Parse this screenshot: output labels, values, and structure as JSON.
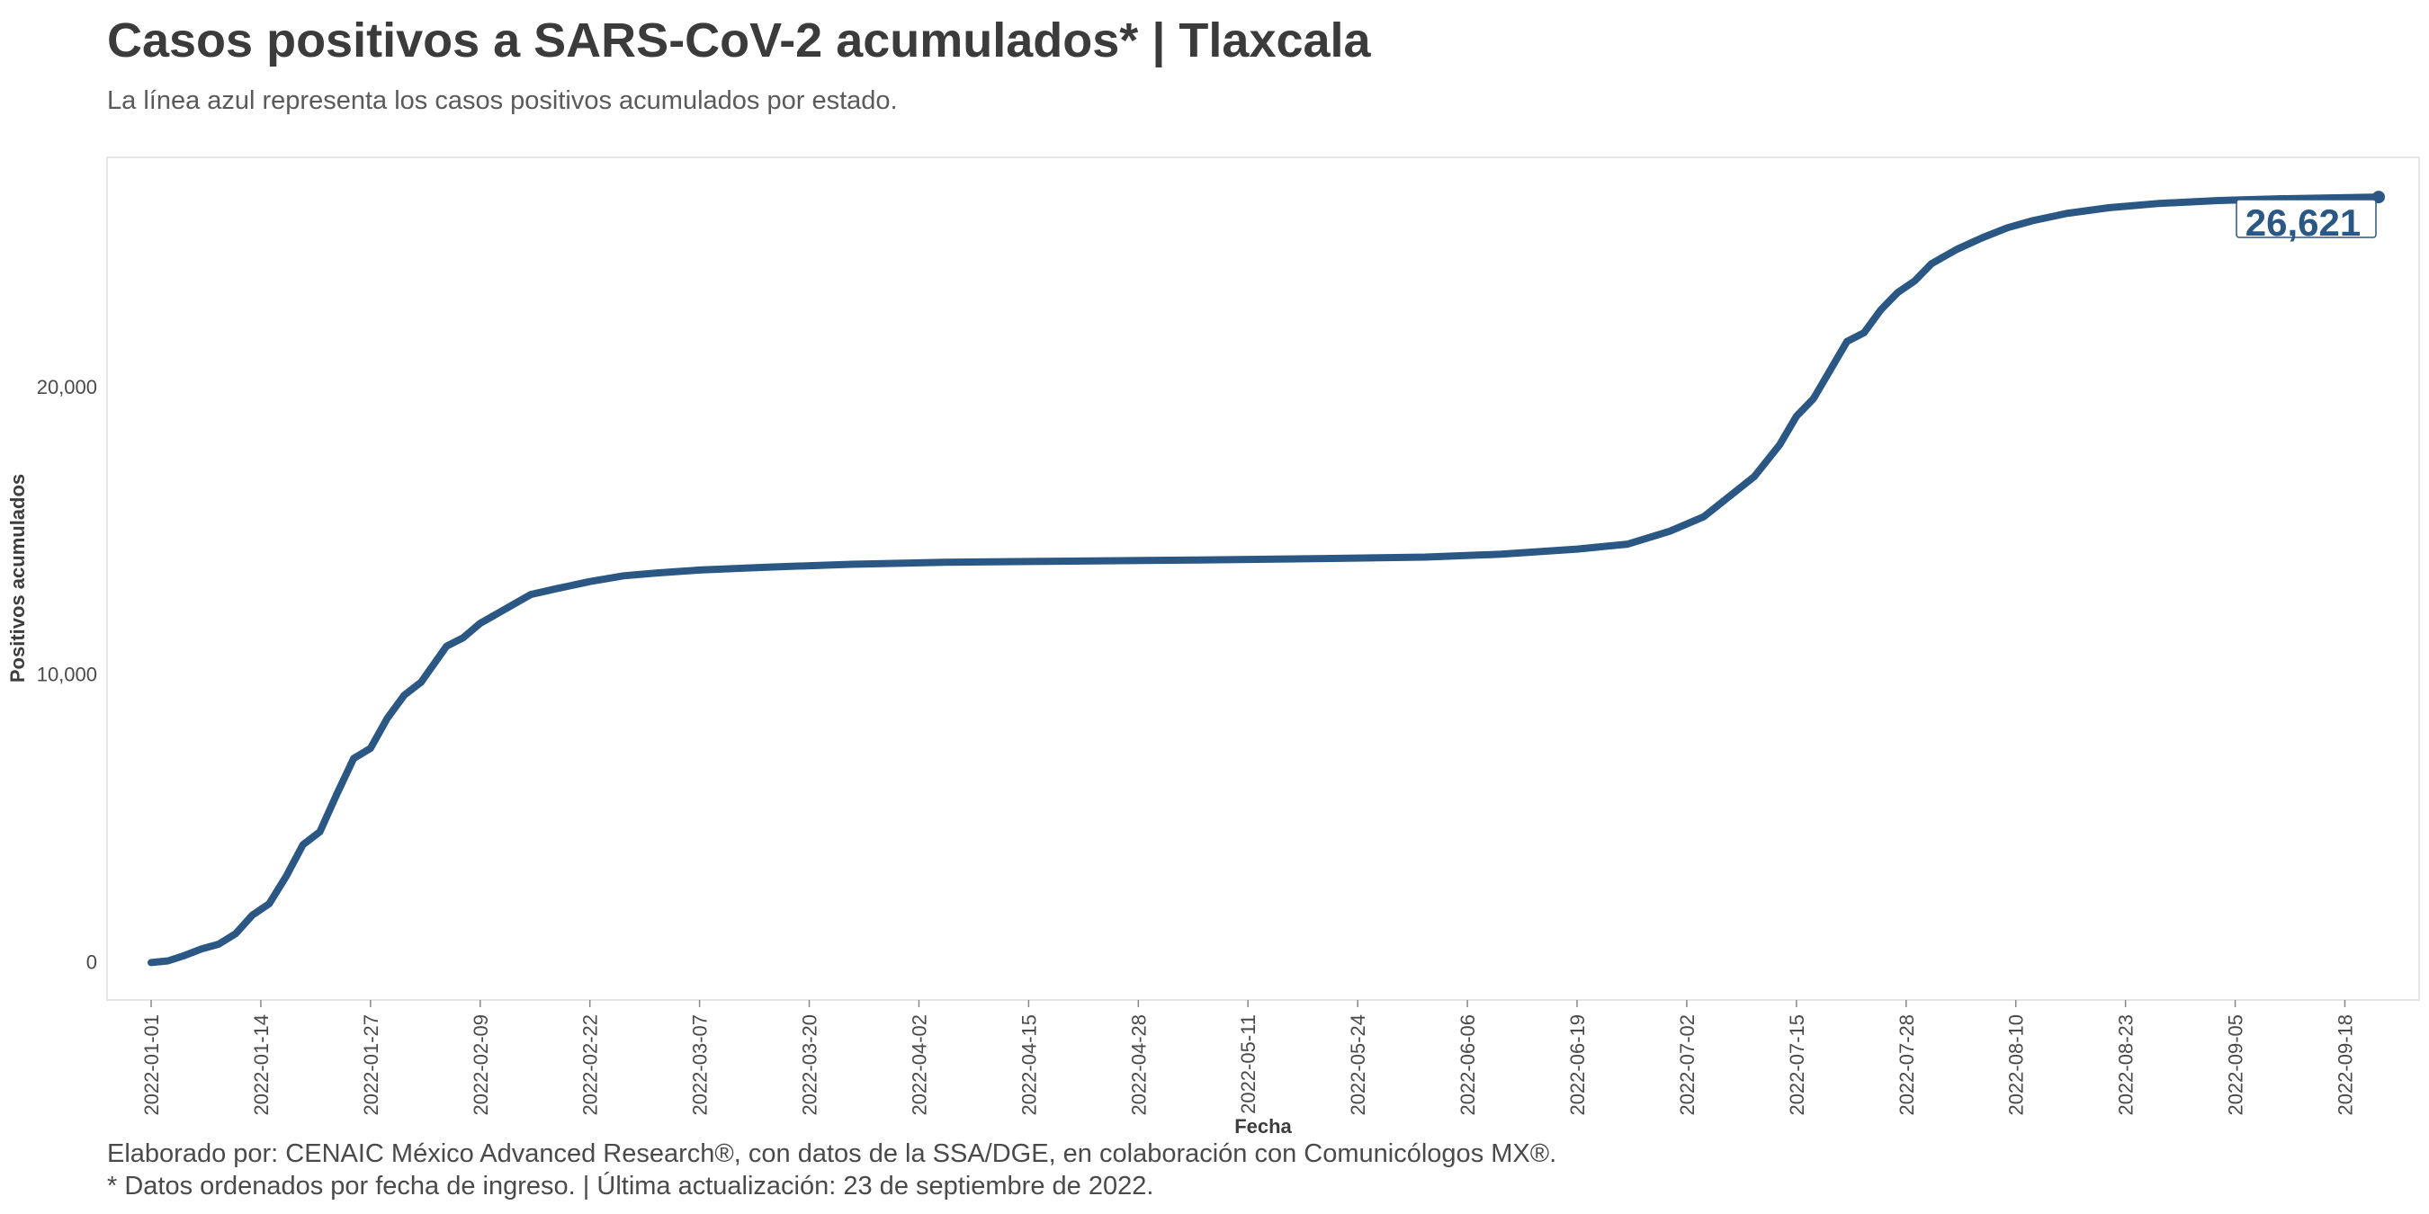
{
  "title": "Casos positivos a SARS-CoV-2 acumulados* | Tlaxcala",
  "subtitle": "La línea azul representa los casos positivos acumulados por estado.",
  "caption": {
    "line1": "Elaborado por: CENAIC México Advanced Research®, con datos de la SSA/DGE, en colaboración con Comunicólogos MX®.",
    "line2": "* Datos ordenados por fecha de ingreso. | Última actualización: 23 de septiembre de 2022."
  },
  "colors": {
    "line": "#2a5783",
    "text": "#3d3d3d",
    "panel_border": "#dddddd"
  },
  "chart_data": {
    "type": "line",
    "xlabel": "Fecha",
    "ylabel": "Positivos acumulados",
    "x_start": "2022-01-01",
    "x_end": "2022-09-22",
    "x_ticks": [
      "2022-01-01",
      "2022-01-14",
      "2022-01-27",
      "2022-02-09",
      "2022-02-22",
      "2022-03-07",
      "2022-03-20",
      "2022-04-02",
      "2022-04-15",
      "2022-04-28",
      "2022-05-11",
      "2022-05-24",
      "2022-06-06",
      "2022-06-19",
      "2022-07-02",
      "2022-07-15",
      "2022-07-28",
      "2022-08-10",
      "2022-08-23",
      "2022-09-05",
      "2022-09-18"
    ],
    "y_ticks": [
      0,
      10000,
      20000
    ],
    "y_tick_labels": [
      "0",
      "10,000",
      "20,000"
    ],
    "ylim": [
      -1300,
      28000
    ],
    "grid": false,
    "end_label": "26,621",
    "series": [
      {
        "points": [
          [
            "2022-01-01",
            0
          ],
          [
            "2022-01-03",
            60
          ],
          [
            "2022-01-05",
            250
          ],
          [
            "2022-01-07",
            480
          ],
          [
            "2022-01-09",
            640
          ],
          [
            "2022-01-11",
            1000
          ],
          [
            "2022-01-13",
            1650
          ],
          [
            "2022-01-15",
            2050
          ],
          [
            "2022-01-17",
            3000
          ],
          [
            "2022-01-19",
            4100
          ],
          [
            "2022-01-21",
            4550
          ],
          [
            "2022-01-23",
            5850
          ],
          [
            "2022-01-25",
            7100
          ],
          [
            "2022-01-27",
            7450
          ],
          [
            "2022-01-29",
            8500
          ],
          [
            "2022-01-31",
            9300
          ],
          [
            "2022-02-02",
            9750
          ],
          [
            "2022-02-05",
            11000
          ],
          [
            "2022-02-07",
            11300
          ],
          [
            "2022-02-09",
            11800
          ],
          [
            "2022-02-12",
            12300
          ],
          [
            "2022-02-15",
            12800
          ],
          [
            "2022-02-18",
            13000
          ],
          [
            "2022-02-22",
            13250
          ],
          [
            "2022-02-26",
            13450
          ],
          [
            "2022-03-02",
            13550
          ],
          [
            "2022-03-07",
            13650
          ],
          [
            "2022-03-15",
            13750
          ],
          [
            "2022-03-25",
            13850
          ],
          [
            "2022-04-05",
            13920
          ],
          [
            "2022-04-20",
            13960
          ],
          [
            "2022-05-05",
            14000
          ],
          [
            "2022-05-20",
            14050
          ],
          [
            "2022-06-01",
            14100
          ],
          [
            "2022-06-10",
            14200
          ],
          [
            "2022-06-19",
            14380
          ],
          [
            "2022-06-25",
            14550
          ],
          [
            "2022-06-30",
            15000
          ],
          [
            "2022-07-04",
            15500
          ],
          [
            "2022-07-07",
            16200
          ],
          [
            "2022-07-10",
            16900
          ],
          [
            "2022-07-13",
            18000
          ],
          [
            "2022-07-15",
            19000
          ],
          [
            "2022-07-17",
            19600
          ],
          [
            "2022-07-19",
            20600
          ],
          [
            "2022-07-21",
            21600
          ],
          [
            "2022-07-23",
            21900
          ],
          [
            "2022-07-25",
            22700
          ],
          [
            "2022-07-27",
            23300
          ],
          [
            "2022-07-29",
            23700
          ],
          [
            "2022-07-31",
            24300
          ],
          [
            "2022-08-03",
            24800
          ],
          [
            "2022-08-06",
            25200
          ],
          [
            "2022-08-09",
            25550
          ],
          [
            "2022-08-12",
            25800
          ],
          [
            "2022-08-16",
            26050
          ],
          [
            "2022-08-21",
            26250
          ],
          [
            "2022-08-27",
            26400
          ],
          [
            "2022-09-03",
            26500
          ],
          [
            "2022-09-10",
            26560
          ],
          [
            "2022-09-22",
            26621
          ]
        ]
      }
    ]
  }
}
